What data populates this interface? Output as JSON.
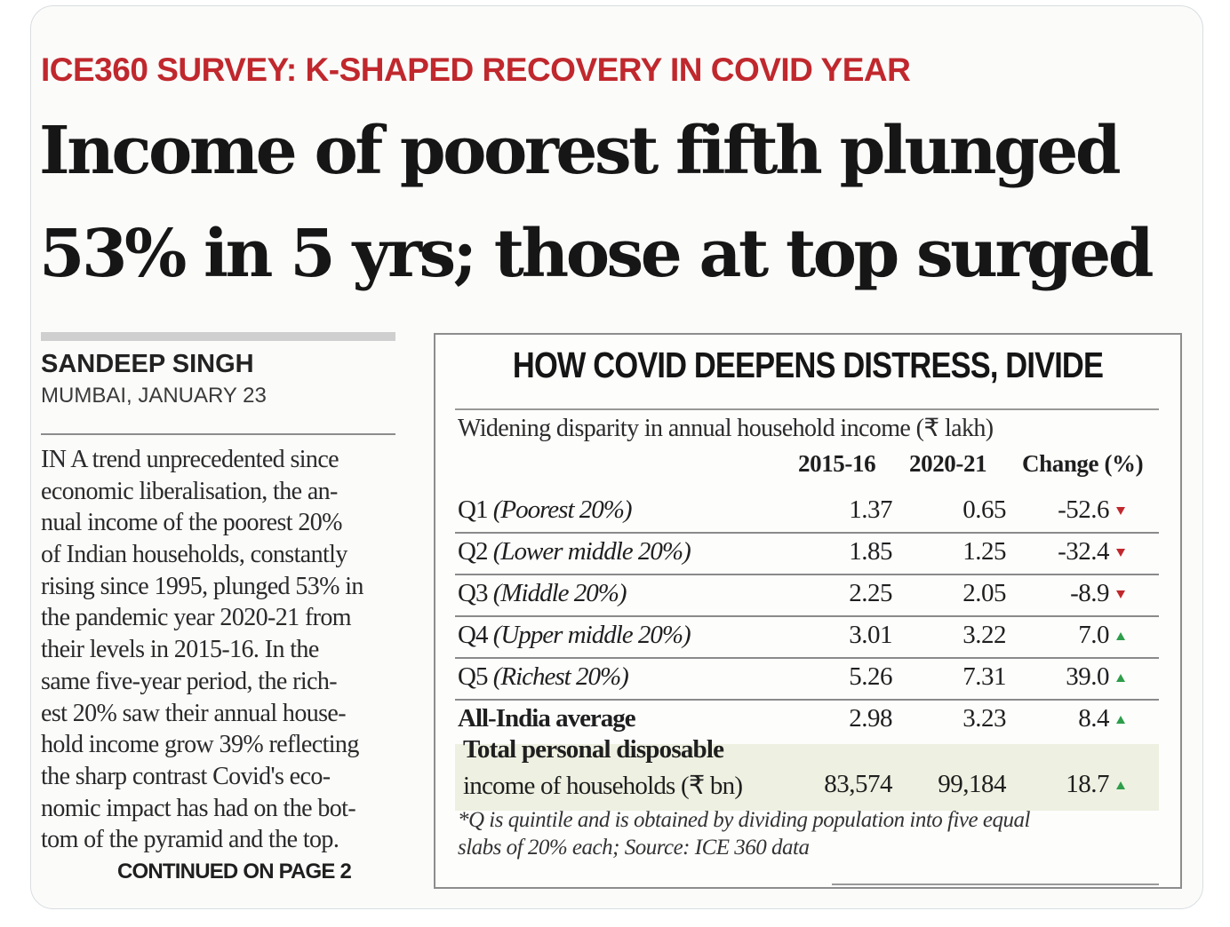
{
  "kicker": "ICE360 SURVEY: K-SHAPED RECOVERY IN COVID YEAR",
  "headline": {
    "line1": "Income of poorest fifth plunged",
    "line2": "53% in 5 yrs; those at top surged"
  },
  "byline": {
    "author": "SANDEEP SINGH",
    "dateline": "MUMBAI, JANUARY 23"
  },
  "body_lines": [
    "IN A trend unprecedented since",
    "economic liberalisation, the an-",
    "nual income of the poorest 20%",
    "of Indian households, constantly",
    "rising since 1995, plunged 53% in",
    "the pandemic year 2020-21 from",
    "their levels in 2015-16. In the",
    "same five-year period, the rich-",
    "est 20% saw their annual house-",
    "hold income grow 39% reflecting",
    "the sharp contrast Covid's eco-",
    "nomic impact has had on the bot-",
    "tom of the pyramid and the top."
  ],
  "continued": "CONTINUED ON PAGE 2",
  "table": {
    "title": "HOW COVID DEEPENS DISTRESS, DIVIDE",
    "subtitle": "Widening disparity in annual household income  (₹ lakh)",
    "columns": [
      "2015-16",
      "2020-21",
      "Change (%)"
    ],
    "rows": [
      {
        "code": "Q1",
        "desc": "(Poorest 20%)",
        "y2015": "1.37",
        "y2020": "0.65",
        "change": "-52.6",
        "trend": "down"
      },
      {
        "code": "Q2",
        "desc": "(Lower middle 20%)",
        "y2015": "1.85",
        "y2020": "1.25",
        "change": "-32.4",
        "trend": "down"
      },
      {
        "code": "Q3",
        "desc": "(Middle 20%)",
        "y2015": "2.25",
        "y2020": "2.05",
        "change": "-8.9",
        "trend": "down"
      },
      {
        "code": "Q4",
        "desc": "(Upper middle 20%)",
        "y2015": "3.01",
        "y2020": "3.22",
        "change": "7.0",
        "trend": "up"
      },
      {
        "code": "Q5",
        "desc": "(Richest 20%)",
        "y2015": "5.26",
        "y2020": "7.31",
        "change": "39.0",
        "trend": "up"
      },
      {
        "code": "All-India average",
        "desc": "",
        "y2015": "2.98",
        "y2020": "3.23",
        "change": "8.4",
        "trend": "up"
      }
    ],
    "total": {
      "label_line1": "Total personal disposable",
      "label_line2": "income of households (₹ bn)",
      "y2015": "83,574",
      "y2020": "99,184",
      "change": "18.7",
      "trend": "up"
    },
    "footnote_line1": "*Q is quintile and is obtained by dividing population into five equal",
    "footnote_line2": "slabs of 20% each; Source: ICE 360 data",
    "colors": {
      "down": "#c0282d",
      "up": "#2e9e4a"
    }
  }
}
